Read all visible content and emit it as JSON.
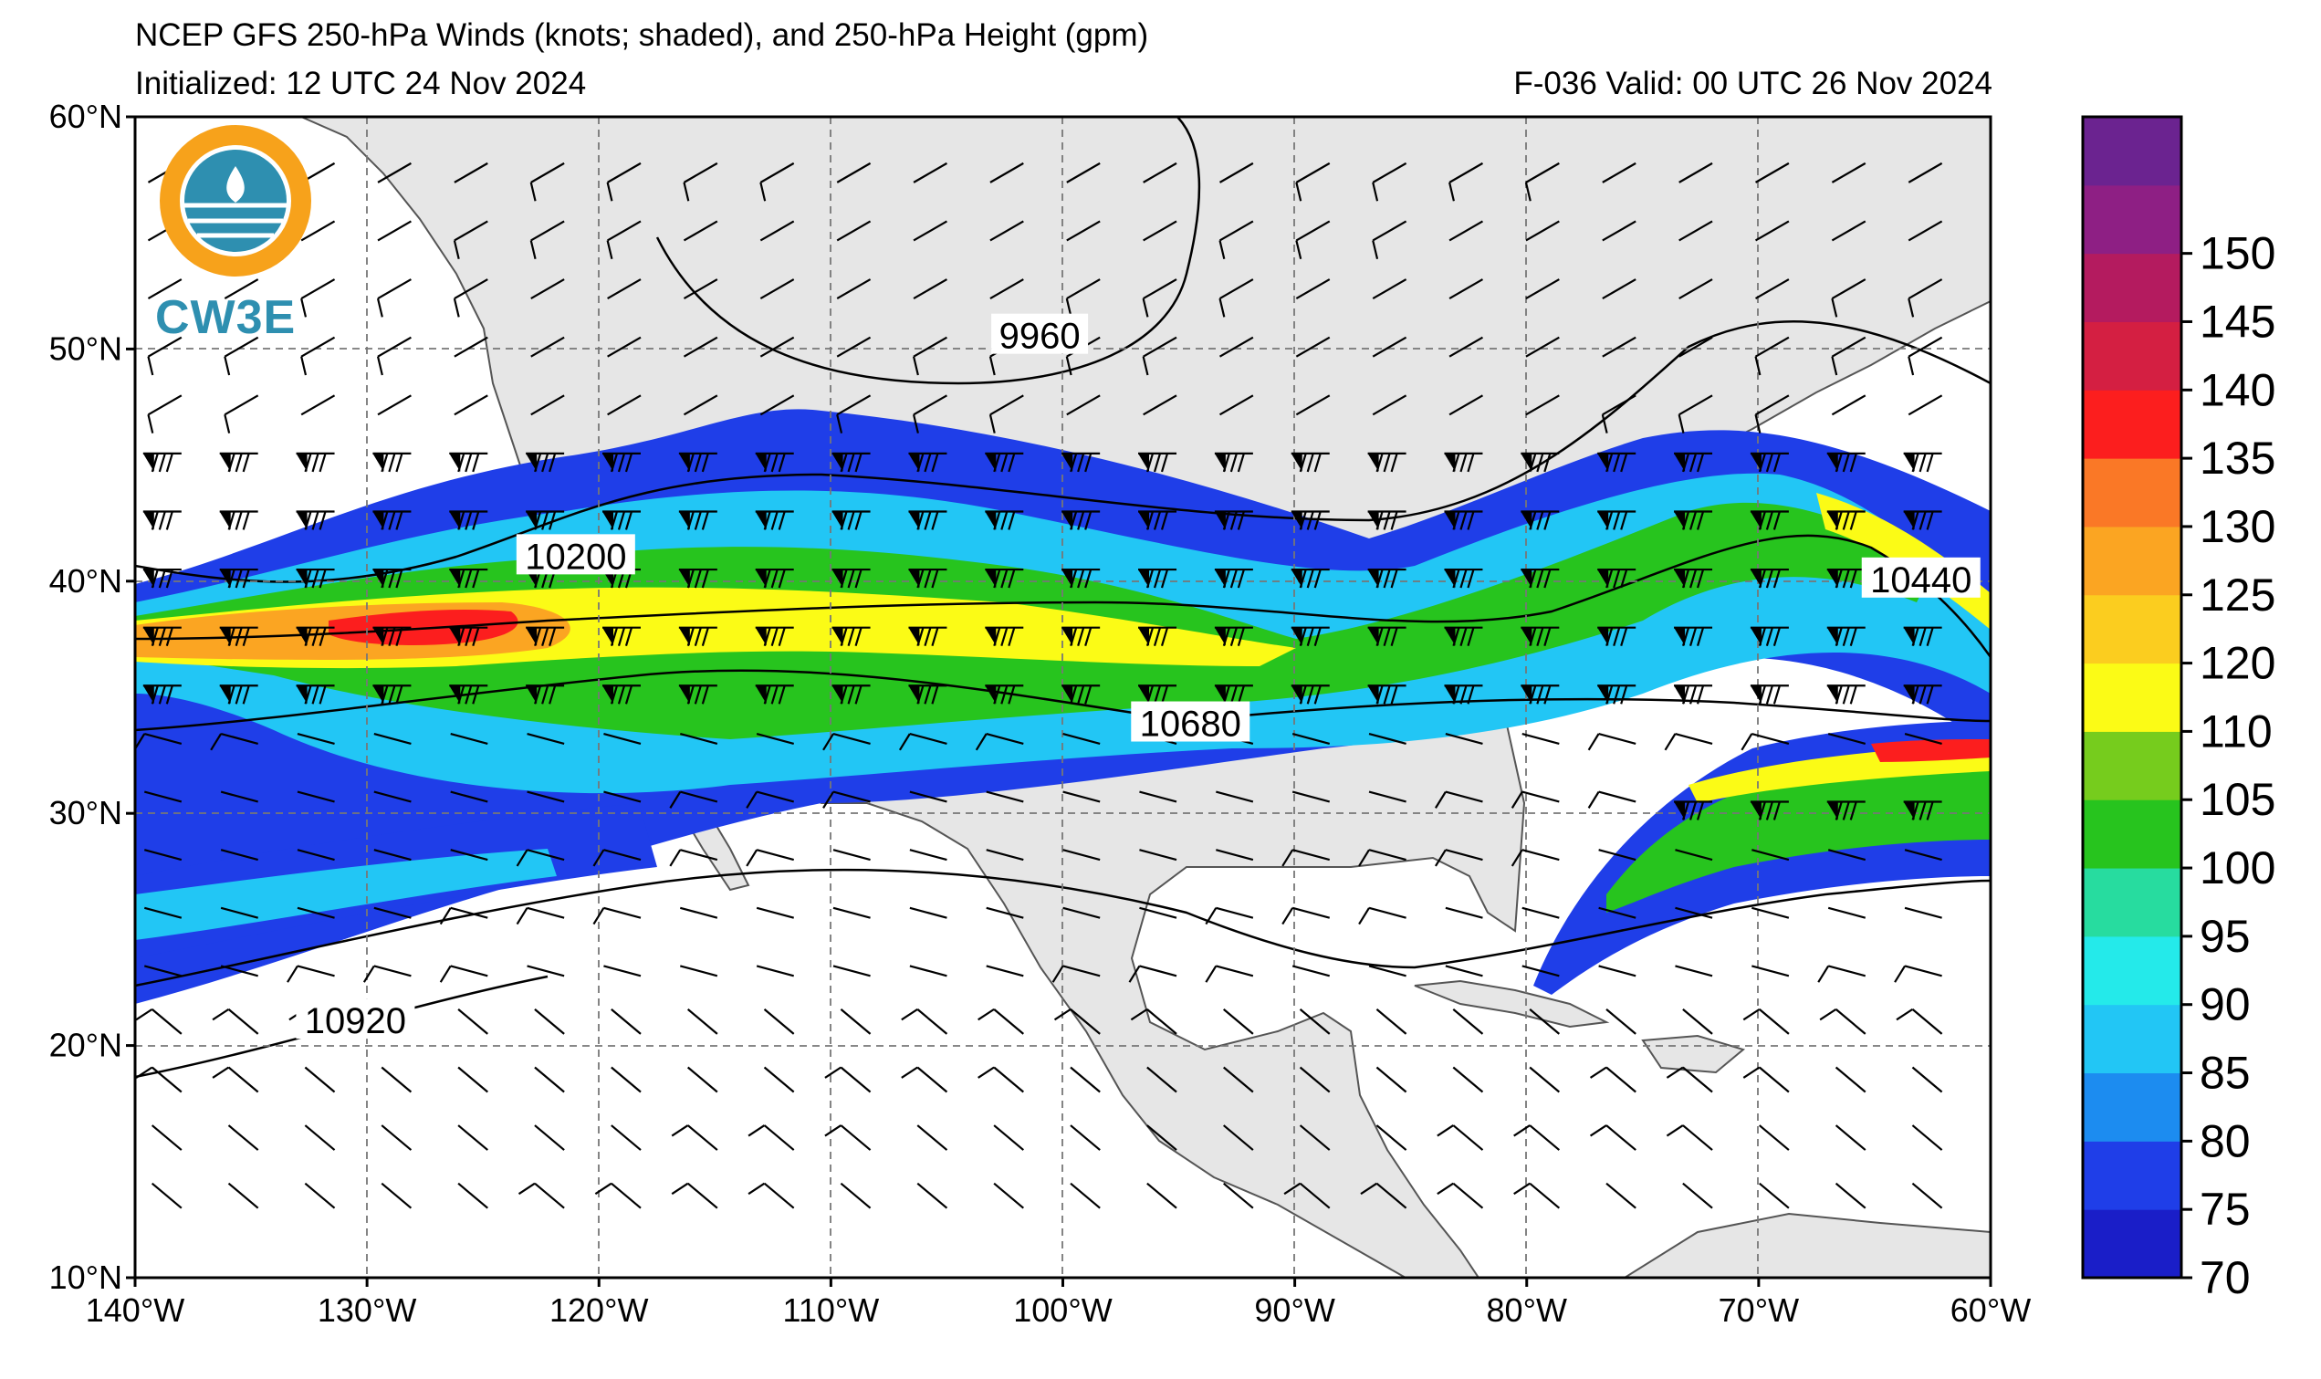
{
  "header": {
    "title": "NCEP GFS 250-hPa Winds (knots; shaded), and 250-hPa Height (gpm)",
    "initialized": "Initialized: 12 UTC 24 Nov 2024",
    "valid": "F-036  Valid: 00 UTC 26 Nov 2024"
  },
  "logo": {
    "text": "CW3E",
    "color": "#2e8fb0",
    "accent": "#f7a21b"
  },
  "map": {
    "lon_range": [
      -140,
      -60
    ],
    "lat_range": [
      10,
      60
    ],
    "lon_ticks": [
      "140°W",
      "130°W",
      "120°W",
      "110°W",
      "100°W",
      "90°W",
      "80°W",
      "70°W",
      "60°W"
    ],
    "lat_ticks": [
      "10°N",
      "20°N",
      "30°N",
      "40°N",
      "50°N",
      "60°N"
    ],
    "land_color": "#e6e6e6",
    "grid": true,
    "height_contour_labels": [
      {
        "text": "9960",
        "lon": -101,
        "lat": 50.5
      },
      {
        "text": "10200",
        "lon": -121,
        "lat": 41
      },
      {
        "text": "10440",
        "lon": -63,
        "lat": 40
      },
      {
        "text": "10680",
        "lon": -94.5,
        "lat": 33.8
      },
      {
        "text": "10920",
        "lon": -130.5,
        "lat": 21
      }
    ]
  },
  "colorbar": {
    "labels": [
      "70",
      "75",
      "80",
      "85",
      "90",
      "95",
      "100",
      "105",
      "110",
      "120",
      "125",
      "130",
      "135",
      "140",
      "145",
      "150"
    ],
    "colors": [
      "#1a1ec8",
      "#1f3ee8",
      "#1c8cf0",
      "#22c6f5",
      "#24eaea",
      "#27dc9f",
      "#27c41e",
      "#76cc1d",
      "#fbfb16",
      "#fbcd1f",
      "#fba522",
      "#fa7826",
      "#fc1e1e",
      "#d41f42",
      "#b41b5f",
      "#8e1f84",
      "#6b2390"
    ]
  }
}
